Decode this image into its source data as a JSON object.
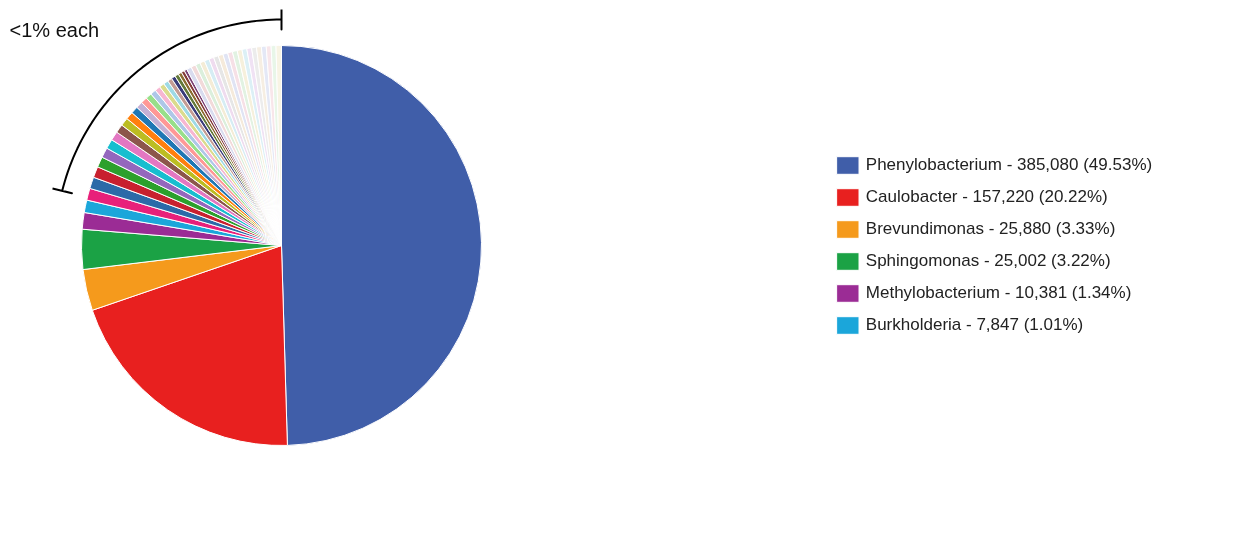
{
  "chart_data": {
    "type": "pie",
    "categories": [
      "Phenylobacterium - 385,080 (49.53%)",
      "Caulobacter - 157,220 (20.22%)",
      "Brevundimonas - 25,880 (3.33%)",
      "Sphingomonas - 25,002 (3.22%)",
      "Methylobacterium - 10,381 (1.34%)",
      "Burkholderia - 7,847 (1.01%)",
      null,
      null,
      null,
      null,
      null,
      null,
      null,
      null,
      null,
      null,
      null,
      null,
      null,
      null,
      null,
      null,
      null,
      null,
      null,
      null,
      null,
      null,
      null,
      null,
      null,
      null,
      null,
      null,
      null,
      null,
      null,
      null,
      null,
      null,
      null,
      null,
      null,
      null,
      null,
      null,
      null,
      null,
      null,
      null
    ],
    "values": [
      49.53,
      20.22,
      3.33,
      3.22,
      1.34,
      1.01,
      0.96,
      0.93,
      0.89,
      0.85,
      0.81,
      0.77,
      0.73,
      0.69,
      0.66,
      0.62,
      0.58,
      0.54,
      0.51,
      0.49,
      0.46,
      0.44,
      0.41,
      0.39,
      0.36,
      0.33,
      0.31,
      0.28,
      0.26,
      0.23,
      0.39,
      0.39,
      0.39,
      0.39,
      0.39,
      0.39,
      0.39,
      0.39,
      0.39,
      0.39,
      0.39,
      0.39,
      0.39,
      0.39,
      0.39,
      0.39,
      0.39,
      0.39,
      0.39,
      0.44
    ],
    "colors": [
      "#405ea9",
      "#e8201f",
      "#f59a1c",
      "#1ba245",
      "#9b2c95",
      "#1ba6da",
      "#e8207a",
      "#2c6aa8",
      "#c8202f",
      "#2ca02c",
      "#9467bd",
      "#17becf",
      "#e377c2",
      "#8c564b",
      "#bcbd22",
      "#ff7f0e",
      "#1f77b4",
      "#c5b0d5",
      "#ff9896",
      "#98df8a",
      "#aec7e8",
      "#f7b6d2",
      "#dbdb8d",
      "#9edae5",
      "#c49c94",
      "#393b79",
      "#637939",
      "#8c6d31",
      "#843c39",
      "#7b4173",
      "#d9dcef",
      "#f2dada",
      "#dbefdc",
      "#f4ecd6",
      "#d6edf4",
      "#efdcef",
      "#e6e6e6",
      "#f5eadb",
      "#e0e4f4",
      "#f6e0e6",
      "#e2f2e2",
      "#f6f0dc",
      "#dcf0f6",
      "#f0e2f4",
      "#ececec",
      "#f6eee2",
      "#e4e8f6",
      "#f8e6ea",
      "#e8f6e8",
      "#f8f4e4"
    ],
    "legend": "right",
    "annotations": [
      "<1% each"
    ]
  }
}
